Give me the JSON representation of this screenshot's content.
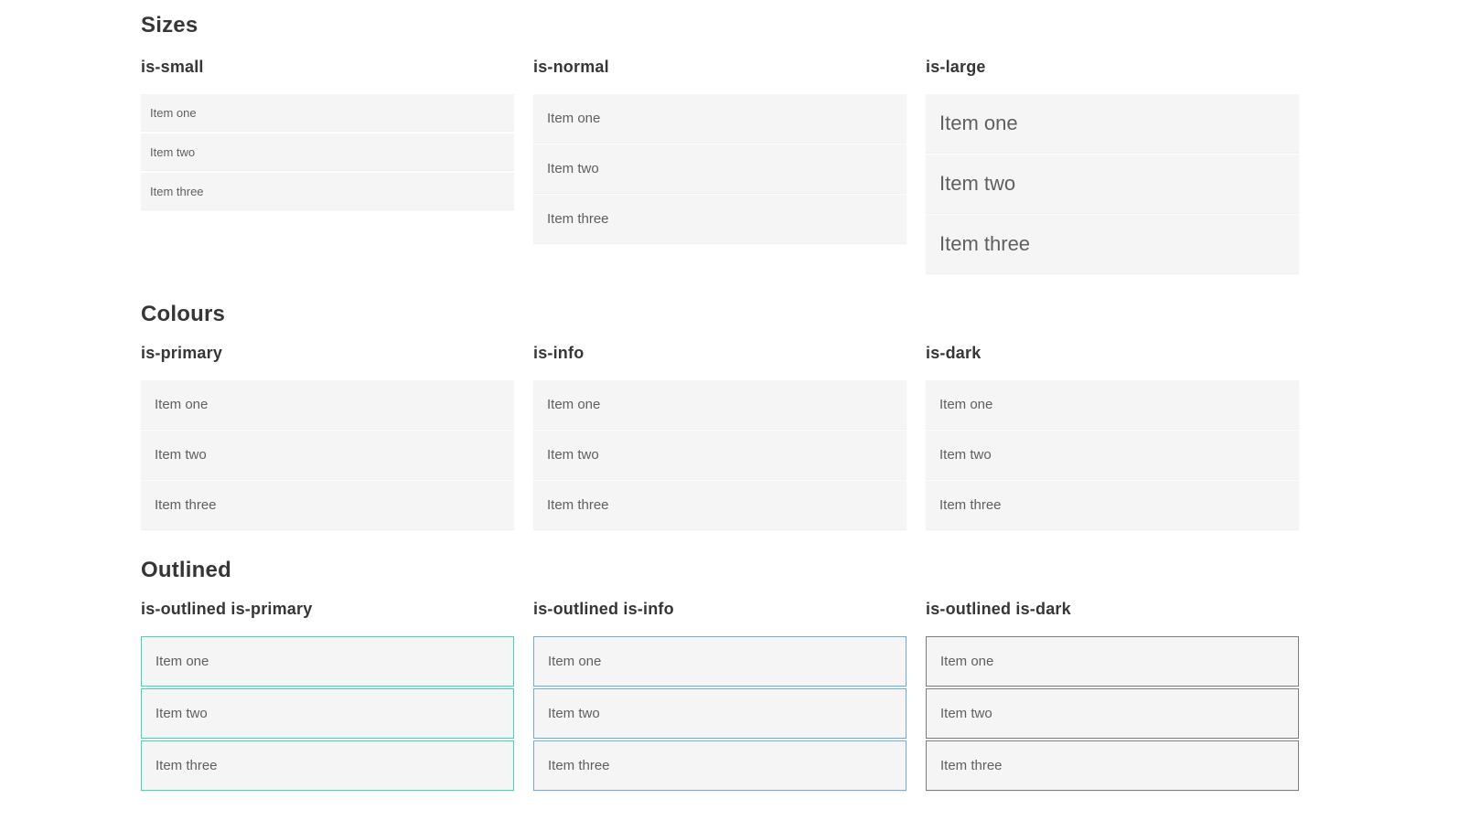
{
  "sections": [
    {
      "id": "sizes",
      "title": "Sizes",
      "groups": [
        {
          "label": "is-small",
          "variant": "small",
          "items": [
            "Item one",
            "Item two",
            "Item three"
          ]
        },
        {
          "label": "is-normal",
          "variant": "normal",
          "items": [
            "Item one",
            "Item two",
            "Item three"
          ]
        },
        {
          "label": "is-large",
          "variant": "large",
          "items": [
            "Item one",
            "Item two",
            "Item three"
          ]
        }
      ]
    },
    {
      "id": "colours",
      "title": "Colours",
      "groups": [
        {
          "label": "is-primary",
          "variant": "primary",
          "items": [
            "Item one",
            "Item two",
            "Item three"
          ]
        },
        {
          "label": "is-info",
          "variant": "info",
          "items": [
            "Item one",
            "Item two",
            "Item three"
          ]
        },
        {
          "label": "is-dark",
          "variant": "dark",
          "items": [
            "Item one",
            "Item two",
            "Item three"
          ]
        }
      ]
    },
    {
      "id": "outlined",
      "title": "Outlined",
      "groups": [
        {
          "label": "is-outlined is-primary",
          "variant": "outlined-primary",
          "items": [
            "Item one",
            "Item two",
            "Item three"
          ]
        },
        {
          "label": "is-outlined is-info",
          "variant": "outlined-info",
          "items": [
            "Item one",
            "Item two",
            "Item three"
          ]
        },
        {
          "label": "is-outlined is-dark",
          "variant": "outlined-dark",
          "items": [
            "Item one",
            "Item two",
            "Item three"
          ]
        }
      ]
    }
  ],
  "colors": {
    "heading": "#363636",
    "list_item_bg": "#f5f5f5",
    "list_item_text": "#5f5f5f",
    "primary": "#0dccb2",
    "info": "#3798da",
    "dark": "#363636",
    "text_on_color": "#ffffff",
    "text_on_dark": "#ececec",
    "outlined_primary_border": "#3ed6bf",
    "outlined_primary_text": "#23d2b6",
    "outlined_info_border": "#6caee3",
    "outlined_info_text": "#4597db",
    "outlined_dark_border": "#7d7d7d",
    "outlined_dark_text": "#4a4a4a"
  }
}
